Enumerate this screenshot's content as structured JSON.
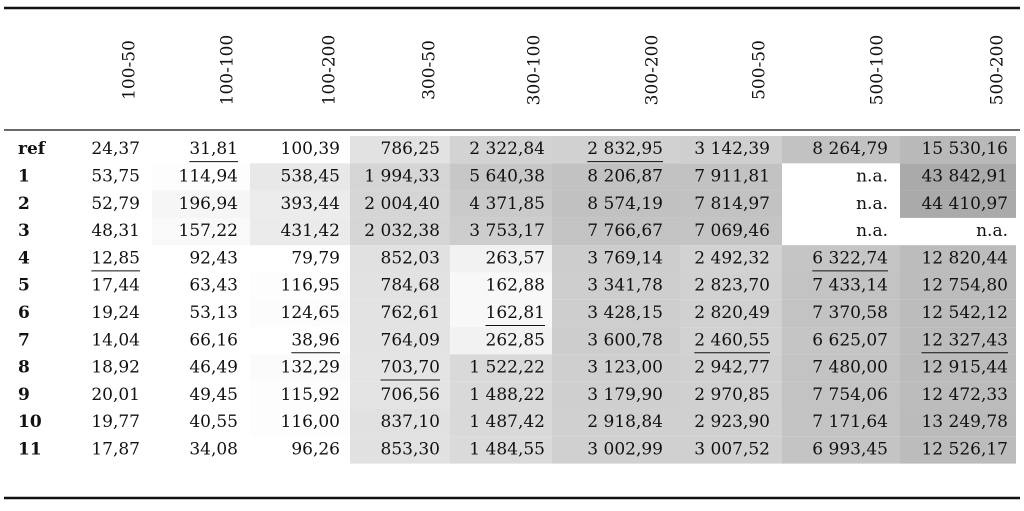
{
  "table": {
    "header": [
      "100-50",
      "100-100",
      "100-200",
      "300-50",
      "300-100",
      "300-200",
      "500-50",
      "500-100",
      "500-200"
    ],
    "rows": [
      [
        "ref",
        "24,37",
        "31,81",
        "100,39",
        "786,25",
        "2 322,84",
        "2 832,95",
        "3 142,39",
        "8 264,79",
        "15 530,16"
      ],
      [
        "1",
        "53,75",
        "114,94",
        "538,45",
        "1 994,33",
        "5 640,38",
        "8 206,87",
        "7 911,81",
        "n.a.",
        "43 842,91"
      ],
      [
        "2",
        "52,79",
        "196,94",
        "393,44",
        "2 004,40",
        "4 371,85",
        "8 574,19",
        "7 814,97",
        "n.a.",
        "44 410,97"
      ],
      [
        "3",
        "48,31",
        "157,22",
        "431,42",
        "2 032,38",
        "3 753,17",
        "7 766,67",
        "7 069,46",
        "n.a.",
        "n.a."
      ],
      [
        "4",
        "12,85",
        "92,43",
        "79,79",
        "852,03",
        "263,57",
        "3 769,14",
        "2 492,32",
        "6 322,74",
        "12 820,44"
      ],
      [
        "5",
        "17,44",
        "63,43",
        "116,95",
        "784,68",
        "162,88",
        "3 341,78",
        "2 823,70",
        "7 433,14",
        "12 754,80"
      ],
      [
        "6",
        "19,24",
        "53,13",
        "124,65",
        "762,61",
        "162,81",
        "3 428,15",
        "2 820,49",
        "7 370,58",
        "12 542,12"
      ],
      [
        "7",
        "14,04",
        "66,16",
        "38,96",
        "764,09",
        "262,85",
        "3 600,78",
        "2 460,55",
        "6 625,07",
        "12 327,43"
      ],
      [
        "8",
        "18,92",
        "46,49",
        "132,29",
        "703,70",
        "1 522,22",
        "3 123,00",
        "2 942,77",
        "7 480,00",
        "12 915,44"
      ],
      [
        "9",
        "20,01",
        "49,45",
        "115,92",
        "706,56",
        "1 488,22",
        "3 179,90",
        "2 970,85",
        "7 754,06",
        "12 472,33"
      ],
      [
        "10",
        "19,77",
        "40,55",
        "116,00",
        "837,10",
        "1 487,42",
        "2 918,84",
        "2 923,90",
        "7 171,64",
        "13 249,78"
      ],
      [
        "11",
        "17,87",
        "34,08",
        "96,26",
        "853,30",
        "1 484,55",
        "3 002,99",
        "3 007,52",
        "6 993,45",
        "12 526,17"
      ]
    ]
  }
}
